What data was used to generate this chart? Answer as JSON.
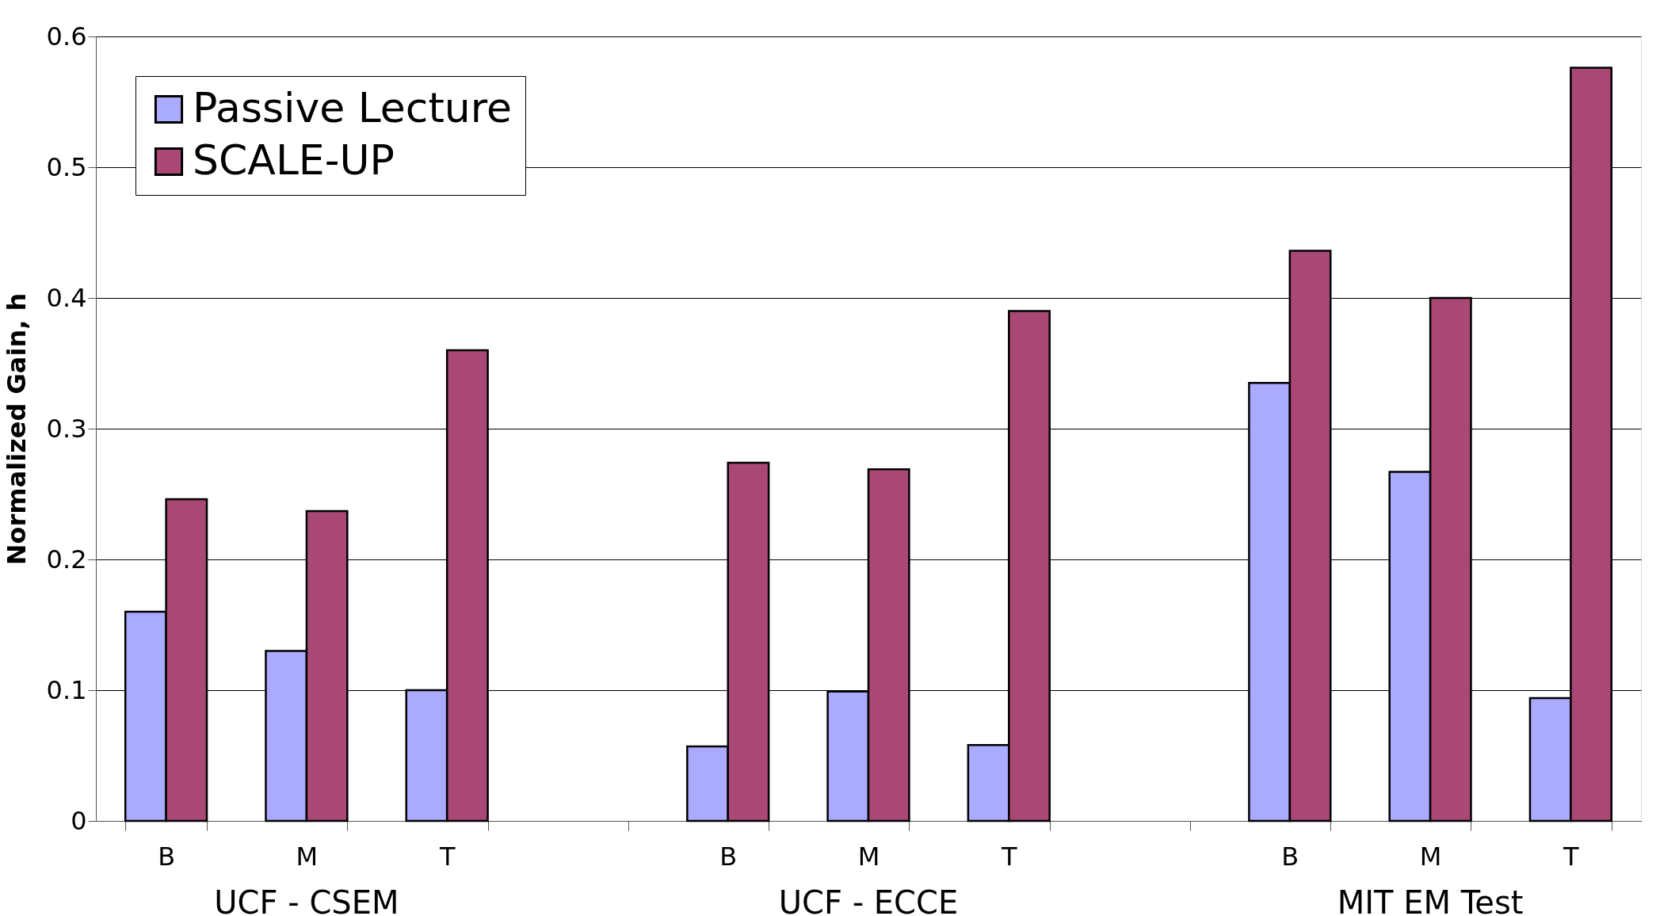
{
  "chart_data": {
    "type": "bar",
    "ylabel": "Normalized Gain, h",
    "categories": [
      "B",
      "M",
      "T",
      null,
      "B",
      "M",
      "T",
      null,
      "B",
      "M",
      "T"
    ],
    "series": [
      {
        "name": "Passive Lecture",
        "color": "#aaaaff",
        "values": [
          0.16,
          0.13,
          0.1,
          null,
          0.057,
          0.099,
          0.058,
          null,
          0.335,
          0.267,
          0.094
        ]
      },
      {
        "name": "SCALE-UP",
        "color": "#a94874",
        "values": [
          0.246,
          0.237,
          0.36,
          null,
          0.274,
          0.269,
          0.39,
          null,
          0.436,
          0.4,
          0.576
        ]
      }
    ],
    "annotations": [
      "UCF - CSEM",
      "UCF - ECCE",
      "MIT EM Test"
    ],
    "ylim": [
      0,
      0.6
    ],
    "yticks": [
      0,
      0.1,
      0.2,
      0.3,
      0.4,
      0.5,
      0.6
    ],
    "grid": "y",
    "legend": "top left"
  }
}
